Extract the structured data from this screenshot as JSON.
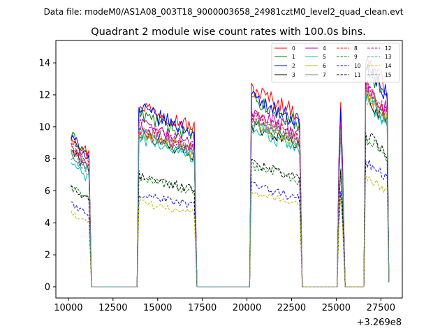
{
  "chart_data": {
    "type": "line",
    "suptitle": "Data file: modeM0/AS1A08_003T18_9000003658_24981cztM0_level2_quad_clean.evt",
    "title": "Quadrant 2 module wise count rates with 100.0s bins.",
    "xlabel": "",
    "ylabel": "",
    "x_offset_label": "+3.269e8",
    "xlim": [
      9300,
      28700
    ],
    "ylim": [
      -0.7,
      15.4
    ],
    "xticks": [
      10000,
      12500,
      15000,
      17500,
      20000,
      22500,
      25000,
      27500
    ],
    "yticks": [
      0,
      2,
      4,
      6,
      8,
      10,
      12,
      14
    ],
    "legend_position": "top-right",
    "bin_seconds": 100,
    "segments": [
      {
        "start": 10150,
        "end": 11150
      },
      {
        "start": 13950,
        "end": 17050
      },
      {
        "start": 20250,
        "end": 22950
      },
      {
        "start": 25150,
        "end": 25350
      },
      {
        "start": 26650,
        "end": 27850
      }
    ],
    "gap_value": 0,
    "series": [
      {
        "name": "0",
        "color": "#ff0000",
        "dash": false,
        "levels": [
          9.0,
          10.8,
          11.7,
          10.6,
          13.5
        ]
      },
      {
        "name": "1",
        "color": "#008000",
        "dash": false,
        "levels": [
          8.9,
          10.2,
          11.0,
          9.8,
          12.9
        ]
      },
      {
        "name": "2",
        "color": "#0000ff",
        "dash": false,
        "levels": [
          8.8,
          10.5,
          11.2,
          10.1,
          13.0
        ]
      },
      {
        "name": "3",
        "color": "#000000",
        "dash": false,
        "levels": [
          8.0,
          9.0,
          9.6,
          8.9,
          11.2
        ]
      },
      {
        "name": "4",
        "color": "#bf00bf",
        "dash": false,
        "levels": [
          8.3,
          9.6,
          10.4,
          9.5,
          12.0
        ]
      },
      {
        "name": "5",
        "color": "#00bfbf",
        "dash": false,
        "levels": [
          7.3,
          8.8,
          9.3,
          8.6,
          11.1
        ]
      },
      {
        "name": "6",
        "color": "#bfbf00",
        "dash": false,
        "levels": [
          8.1,
          9.1,
          9.7,
          8.9,
          11.4
        ]
      },
      {
        "name": "7",
        "color": "#808080",
        "dash": false,
        "levels": [
          7.9,
          9.3,
          9.9,
          9.0,
          11.5
        ]
      },
      {
        "name": "8",
        "color": "#ff0000",
        "dash": true,
        "levels": [
          8.6,
          9.3,
          10.1,
          9.2,
          11.7
        ]
      },
      {
        "name": "9",
        "color": "#008000",
        "dash": true,
        "levels": [
          5.9,
          6.5,
          7.2,
          6.6,
          8.8
        ]
      },
      {
        "name": "10",
        "color": "#0000ff",
        "dash": true,
        "levels": [
          4.9,
          5.5,
          6.0,
          5.4,
          7.4
        ]
      },
      {
        "name": "11",
        "color": "#000000",
        "dash": true,
        "levels": [
          5.8,
          6.6,
          7.3,
          6.7,
          9.0
        ]
      },
      {
        "name": "12",
        "color": "#bf00bf",
        "dash": true,
        "levels": [
          8.2,
          9.5,
          10.2,
          9.2,
          11.8
        ]
      },
      {
        "name": "13",
        "color": "#00bfbf",
        "dash": true,
        "levels": [
          7.8,
          9.0,
          9.6,
          8.8,
          11.2
        ]
      },
      {
        "name": "14",
        "color": "#bfbf00",
        "dash": true,
        "levels": [
          4.3,
          5.0,
          5.6,
          5.1,
          6.5
        ]
      },
      {
        "name": "15",
        "color": "#808080",
        "dash": true,
        "levels": [
          7.8,
          9.2,
          9.8,
          8.9,
          11.4
        ]
      }
    ]
  }
}
